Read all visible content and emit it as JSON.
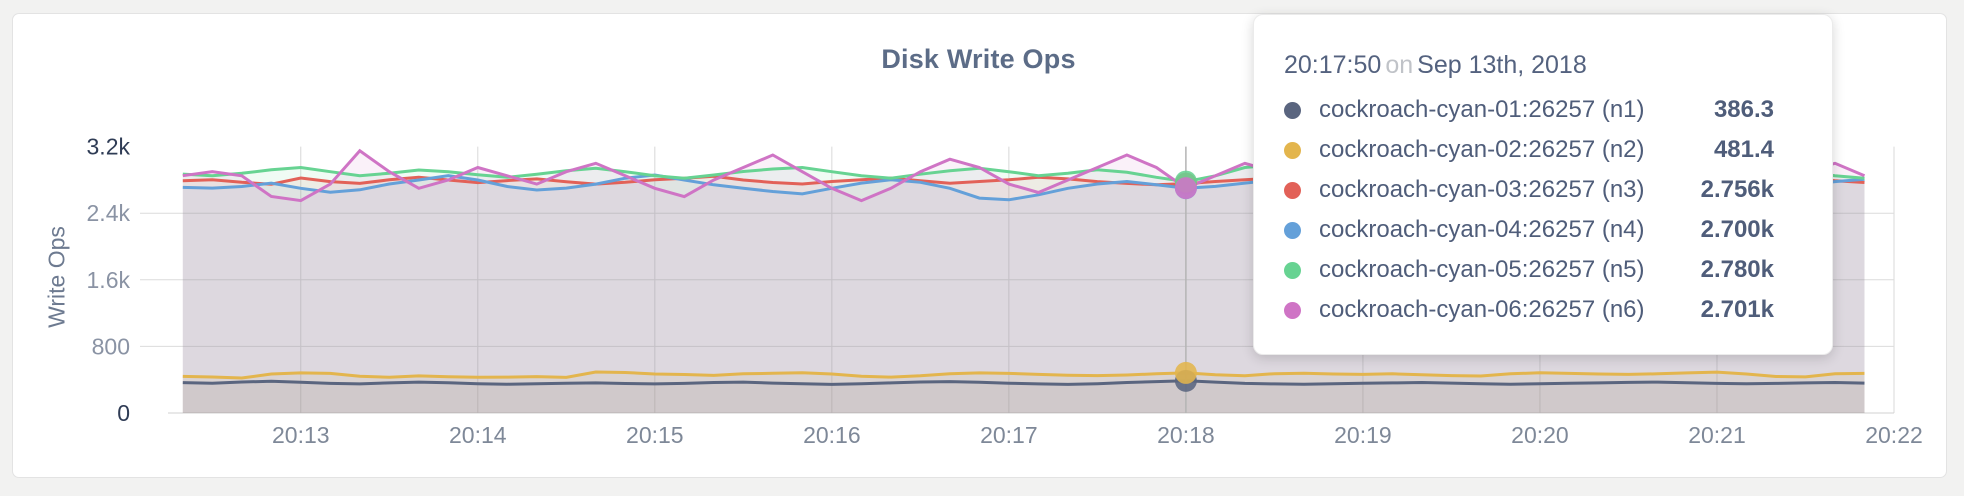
{
  "chart": {
    "title": "Disk Write Ops",
    "y_axis_title": "Write Ops"
  },
  "tooltip": {
    "time": "20:17:50",
    "connector": "on",
    "date": "Sep 13th, 2018",
    "rows": [
      {
        "label": "cockroach-cyan-01:26257 (n1)",
        "value": "386.3",
        "color": "#5a657f"
      },
      {
        "label": "cockroach-cyan-02:26257 (n2)",
        "value": "481.4",
        "color": "#e3b54d"
      },
      {
        "label": "cockroach-cyan-03:26257 (n3)",
        "value": "2.756k",
        "color": "#e26158"
      },
      {
        "label": "cockroach-cyan-04:26257 (n4)",
        "value": "2.700k",
        "color": "#64a0d9"
      },
      {
        "label": "cockroach-cyan-05:26257 (n5)",
        "value": "2.780k",
        "color": "#67d392"
      },
      {
        "label": "cockroach-cyan-06:26257 (n6)",
        "value": "2.701k",
        "color": "#cf74c5"
      }
    ]
  },
  "chart_data": {
    "type": "area",
    "title": "Disk Write Ops",
    "ylabel": "Write Ops",
    "ylim": [
      0,
      3200
    ],
    "grid": true,
    "x_axis_start": "20:12:15",
    "x_axis_end": "20:22:00",
    "sample_start": "20:12:20",
    "sample_interval_seconds": 10,
    "x_ticks": [
      "20:13",
      "20:14",
      "20:15",
      "20:16",
      "20:17",
      "20:18",
      "20:19",
      "20:20",
      "20:21",
      "20:22"
    ],
    "y_ticks": [
      {
        "label": "3.2k",
        "value": 3200,
        "emphasis": true,
        "grid": false
      },
      {
        "label": "2.4k",
        "value": 2400,
        "emphasis": false,
        "grid": true
      },
      {
        "label": "1.6k",
        "value": 1600,
        "emphasis": false,
        "grid": true
      },
      {
        "label": "800",
        "value": 800,
        "emphasis": false,
        "grid": true
      },
      {
        "label": "0",
        "value": 0,
        "emphasis": true,
        "grid": false
      }
    ],
    "hover": {
      "index": 34,
      "time": "20:17:50",
      "values": {
        "n1": 386.3,
        "n2": 481.4,
        "n3": 2756,
        "n4": 2700,
        "n5": 2780,
        "n6": 2701
      }
    },
    "series": [
      {
        "name": "cockroach-cyan-01:26257 (n1)",
        "short": "n1",
        "color": "#5a657f",
        "values": [
          365,
          358,
          372,
          381,
          369,
          355,
          349,
          361,
          371,
          364,
          352,
          346,
          351,
          357,
          362,
          354,
          349,
          356,
          366,
          371,
          359,
          351,
          344,
          352,
          361,
          372,
          377,
          369,
          358,
          349,
          344,
          352,
          366,
          377,
          386.3,
          371,
          356,
          349,
          346,
          352,
          357,
          361,
          366,
          359,
          351,
          346,
          352,
          357,
          362,
          367,
          371,
          364,
          355,
          351,
          356,
          362,
          366,
          359
        ]
      },
      {
        "name": "cockroach-cyan-02:26257 (n2)",
        "short": "n2",
        "color": "#e3b54d",
        "values": [
          440,
          432,
          421,
          468,
          482,
          476,
          441,
          429,
          446,
          436,
          429,
          431,
          437,
          428,
          492,
          486,
          469,
          463,
          452,
          471,
          477,
          483,
          469,
          441,
          431,
          447,
          471,
          482,
          476,
          464,
          453,
          449,
          456,
          471,
          481.4,
          459,
          448,
          472,
          477,
          469,
          464,
          471,
          459,
          449,
          444,
          471,
          483,
          476,
          469,
          464,
          471,
          482,
          491,
          469,
          439,
          434,
          471,
          476
        ]
      },
      {
        "name": "cockroach-cyan-03:26257 (n3)",
        "short": "n3",
        "color": "#e26158",
        "values": [
          2790,
          2802,
          2771,
          2748,
          2823,
          2779,
          2758,
          2801,
          2832,
          2799,
          2768,
          2791,
          2812,
          2778,
          2749,
          2771,
          2802,
          2821,
          2843,
          2799,
          2769,
          2751,
          2781,
          2803,
          2822,
          2789,
          2759,
          2781,
          2801,
          2831,
          2812,
          2779,
          2758,
          2741,
          2756,
          2781,
          2802,
          2823,
          2789,
          2761,
          2742,
          2771,
          2799,
          2821,
          2801,
          2769,
          2749,
          2781,
          2812,
          2831,
          2799,
          2771,
          2749,
          2781,
          2801,
          2822,
          2789,
          2769
        ]
      },
      {
        "name": "cockroach-cyan-04:26257 (n4)",
        "short": "n4",
        "color": "#64a0d9",
        "values": [
          2710,
          2702,
          2721,
          2762,
          2699,
          2652,
          2681,
          2751,
          2799,
          2851,
          2799,
          2721,
          2679,
          2702,
          2749,
          2821,
          2859,
          2799,
          2741,
          2699,
          2661,
          2632,
          2699,
          2761,
          2801,
          2771,
          2699,
          2581,
          2561,
          2621,
          2699,
          2751,
          2781,
          2741,
          2700,
          2722,
          2761,
          2799,
          2771,
          2721,
          2681,
          2699,
          2741,
          2781,
          2799,
          2761,
          2699,
          2661,
          2699,
          2749,
          2789,
          2761,
          2699,
          2651,
          2691,
          2741,
          2779,
          2809
        ]
      },
      {
        "name": "cockroach-cyan-05:26257 (n5)",
        "short": "n5",
        "color": "#67d392",
        "values": [
          2870,
          2851,
          2879,
          2921,
          2949,
          2899,
          2851,
          2881,
          2919,
          2899,
          2861,
          2831,
          2869,
          2911,
          2941,
          2899,
          2851,
          2821,
          2859,
          2901,
          2931,
          2949,
          2899,
          2851,
          2821,
          2869,
          2911,
          2939,
          2899,
          2851,
          2879,
          2921,
          2891,
          2831,
          2780,
          2849,
          2949,
          2979,
          2919,
          2859,
          2831,
          2869,
          2909,
          2879,
          2841,
          2801,
          2849,
          2899,
          2929,
          2889,
          2841,
          2801,
          2849,
          2899,
          2939,
          2899,
          2851,
          2821
        ]
      },
      {
        "name": "cockroach-cyan-06:26257 (n6)",
        "short": "n6",
        "color": "#cf74c5",
        "values": [
          2850,
          2899,
          2849,
          2601,
          2551,
          2749,
          3149,
          2899,
          2699,
          2799,
          2949,
          2849,
          2749,
          2899,
          2999,
          2849,
          2699,
          2599,
          2799,
          2949,
          3099,
          2899,
          2699,
          2551,
          2699,
          2899,
          3049,
          2949,
          2749,
          2649,
          2799,
          2949,
          3099,
          2949,
          2701,
          2849,
          2999,
          2899,
          2749,
          2649,
          2799,
          2949,
          3149,
          3199,
          2899,
          2699,
          2599,
          2749,
          2899,
          3049,
          2949,
          2799,
          2699,
          2599,
          2749,
          2899,
          2999,
          2849
        ]
      }
    ]
  }
}
